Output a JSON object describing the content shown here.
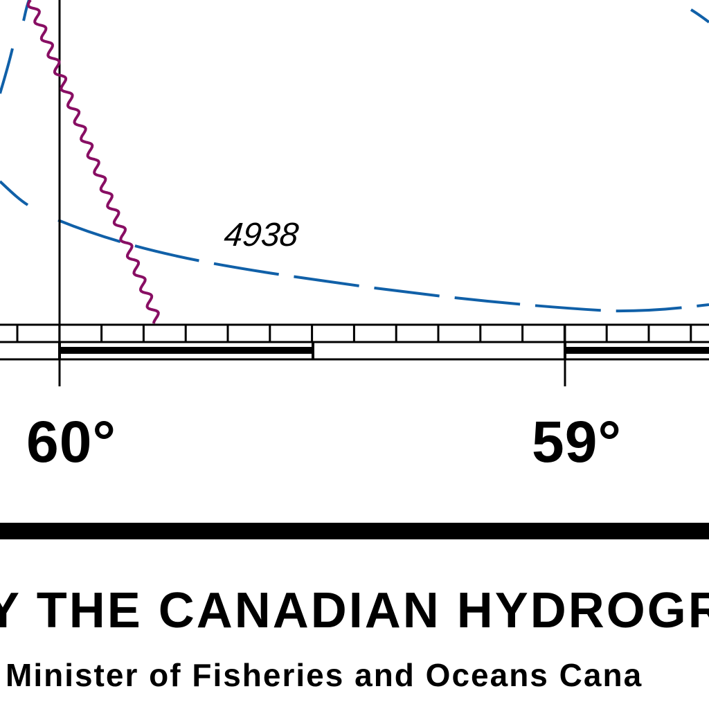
{
  "map": {
    "depth_sounding": "4938",
    "longitude_labels": [
      "60°",
      "59°"
    ],
    "producer_line": "Y THE CANADIAN HYDROGR",
    "copyright_line": "Minister of Fisheries and Oceans Cana",
    "colors": {
      "contour": "#1060a8",
      "boundary": "#880e63",
      "ink": "#000000",
      "paper": "#ffffff"
    }
  }
}
